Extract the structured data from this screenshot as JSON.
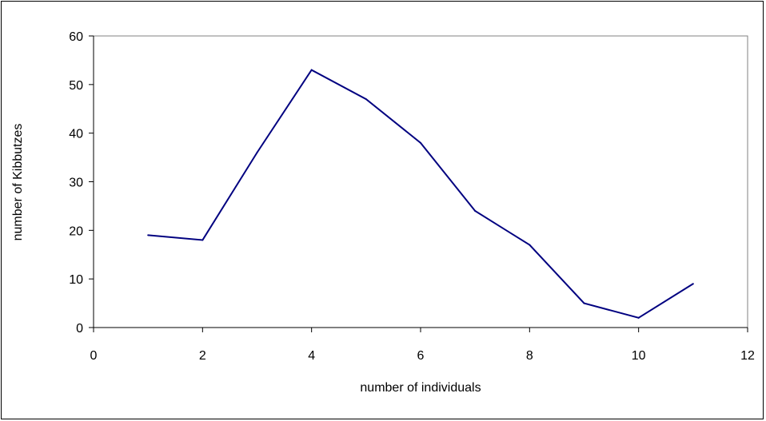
{
  "chart_data": {
    "type": "line",
    "title": "",
    "xlabel": "number of individuals",
    "ylabel": "number of Kibbutzes",
    "xlim": [
      0,
      12
    ],
    "ylim": [
      0,
      60
    ],
    "x_ticks": [
      0,
      2,
      4,
      6,
      8,
      10,
      12
    ],
    "y_ticks": [
      0,
      10,
      20,
      30,
      40,
      50,
      60
    ],
    "grid": false,
    "legend": "none",
    "series": [
      {
        "color": "#000080",
        "x": [
          1,
          2,
          3,
          4,
          5,
          6,
          7,
          8,
          9,
          10,
          11
        ],
        "y": [
          19,
          18,
          36,
          53,
          47,
          38,
          24,
          17,
          5,
          2,
          9
        ]
      }
    ]
  }
}
